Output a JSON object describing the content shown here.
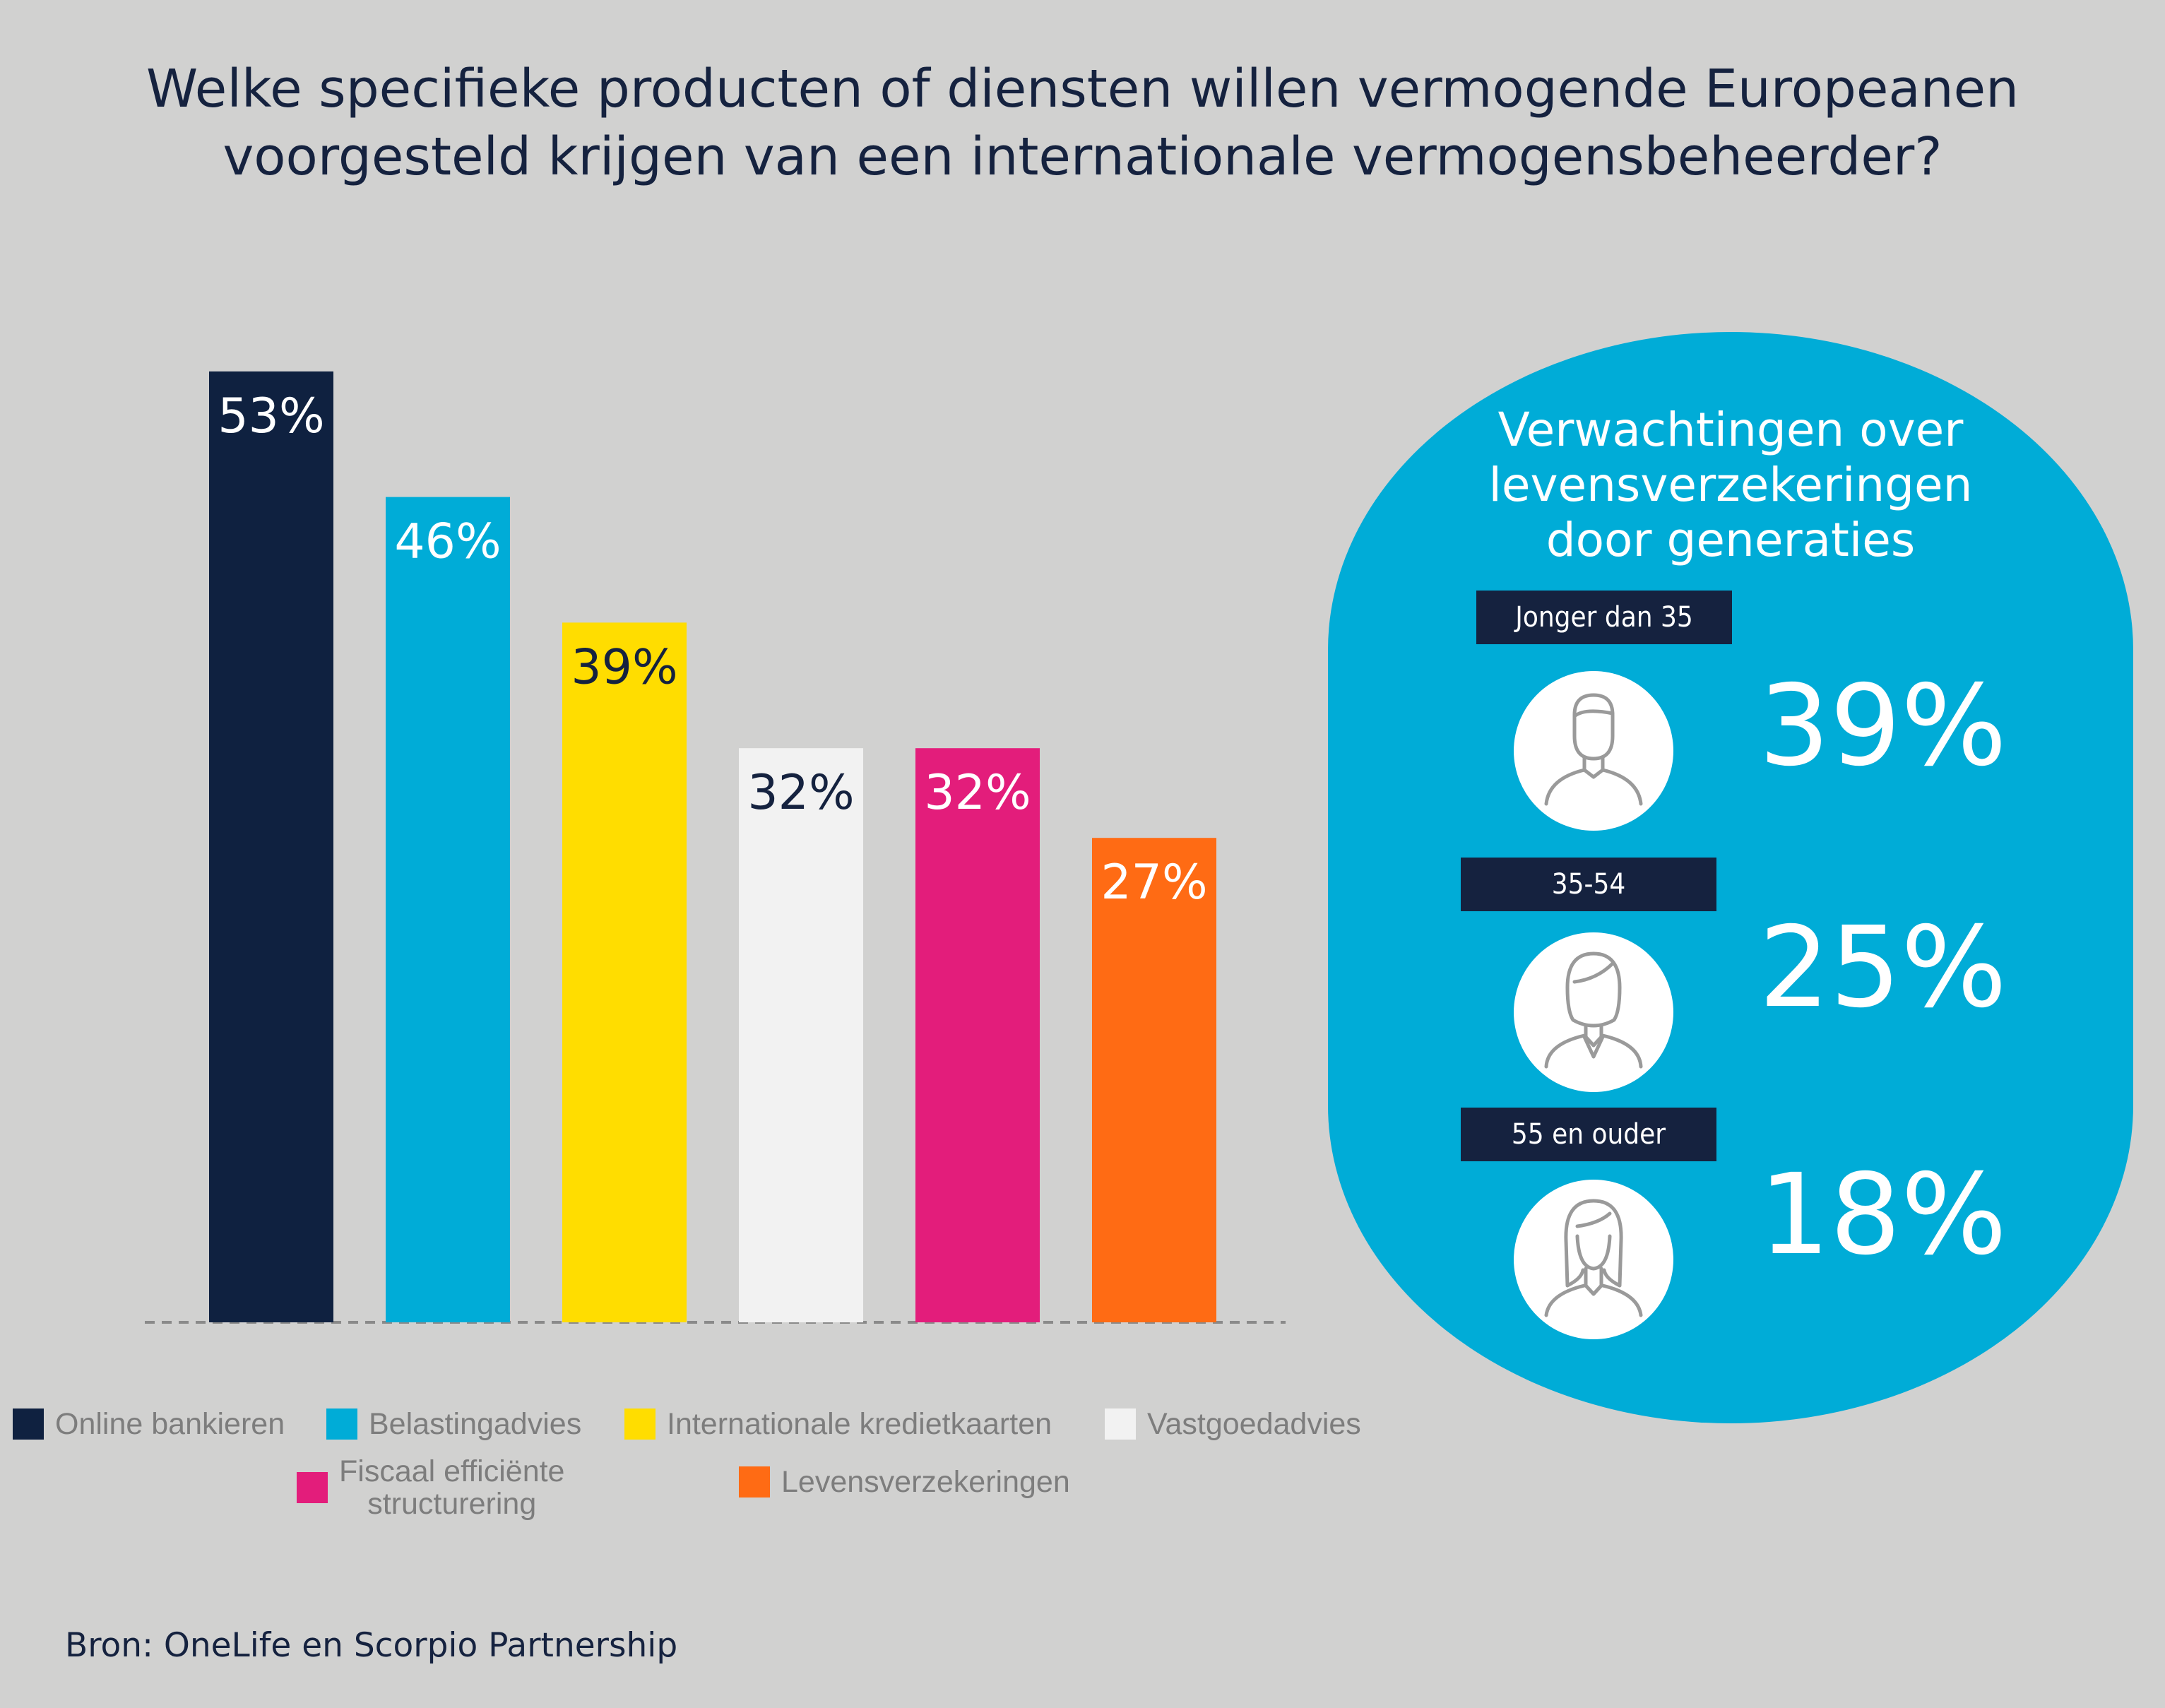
{
  "title": {
    "line1": "Welke specifieke producten of diensten willen vermogende Europeanen",
    "line2": "voorgesteld krijgen van een internationale vermogensbeheerder?"
  },
  "chart_data": {
    "type": "bar",
    "title": "Welke specifieke producten of diensten willen vermogende Europeanen voorgesteld krijgen van een internationale vermogensbeheerder?",
    "categories": [
      "Online bankieren",
      "Belastingadvies",
      "Internationale kredietkaarten",
      "Vastgoedadvies",
      "Fiscaal efficiënte structurering",
      "Levensverzekeringen"
    ],
    "values": [
      53,
      46,
      39,
      32,
      32,
      27
    ],
    "labels": [
      "53%",
      "46%",
      "39%",
      "32%",
      "32%",
      "27%"
    ],
    "unit": "%",
    "ylim": [
      0,
      60
    ],
    "grid": false,
    "legend_position": "bottom",
    "colors": [
      "#0f2140",
      "#00acd7",
      "#ffdd00",
      "#f2f2f2",
      "#e31d7b",
      "#ff6b14"
    ],
    "label_colors": [
      "#ffffff",
      "#ffffff",
      "#15223f",
      "#15223f",
      "#ffffff",
      "#ffffff"
    ]
  },
  "legend": {
    "items": [
      {
        "label": "Online bankieren"
      },
      {
        "label": "Belastingadvies"
      },
      {
        "label": "Internationale kredietkaarten"
      },
      {
        "label": "Vastgoedadvies"
      },
      {
        "label_line1": "Fiscaal efficiënte",
        "label_line2": "structurering"
      },
      {
        "label": "Levensverzekeringen"
      }
    ]
  },
  "panel": {
    "title_line1": "Verwachtingen over",
    "title_line2": "levensverzekeringen",
    "title_line3": "door generaties",
    "generations": [
      {
        "label": "Jonger dan 35",
        "value": "39%",
        "icon": "young-man-icon"
      },
      {
        "label": "35-54",
        "value": "25%",
        "icon": "woman-short-hair-icon"
      },
      {
        "label": "55 en ouder",
        "value": "18%",
        "icon": "woman-long-hair-icon"
      }
    ]
  },
  "source": "Bron: OneLife en Scorpio Partnership",
  "colors": {
    "background": "#d1d1d0",
    "navy": "#15223f",
    "panel": "#00acd7"
  }
}
